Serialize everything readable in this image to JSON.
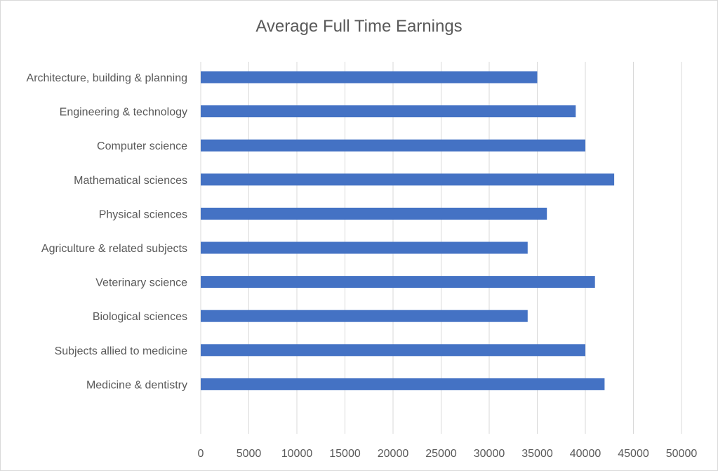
{
  "chart_data": {
    "type": "bar",
    "orientation": "horizontal",
    "title": "Average Full Time Earnings",
    "xlabel": "",
    "ylabel": "",
    "categories": [
      "Architecture, building & planning",
      "Engineering & technology",
      "Computer science",
      "Mathematical sciences",
      "Physical sciences",
      "Agriculture & related subjects",
      "Veterinary science",
      "Biological sciences",
      "Subjects allied to medicine",
      "Medicine & dentistry"
    ],
    "series": [
      {
        "values": [
          35000,
          39000,
          40000,
          43000,
          36000,
          34000,
          41000,
          34000,
          40000,
          42000
        ],
        "color": "#4472c4"
      }
    ],
    "xlim": [
      0,
      50000
    ],
    "x_ticks": [
      0,
      5000,
      10000,
      15000,
      20000,
      25000,
      30000,
      35000,
      40000,
      45000,
      50000
    ],
    "grid": true,
    "legend": "none"
  }
}
